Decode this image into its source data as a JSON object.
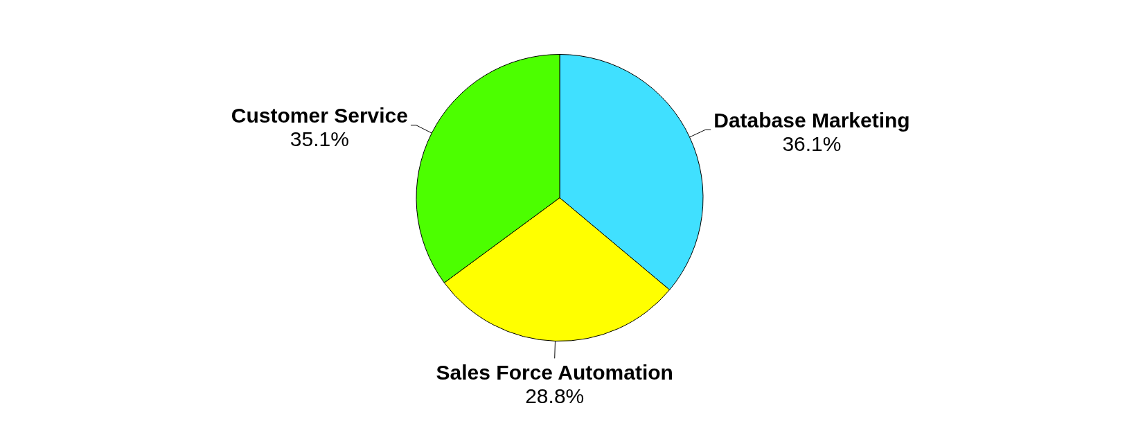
{
  "chart_data": {
    "type": "pie",
    "categories": [
      "Database Marketing",
      "Sales Force Automation",
      "Customer Service"
    ],
    "values": [
      36.1,
      28.8,
      35.1
    ],
    "colors": [
      "#40e0ff",
      "#ffff00",
      "#4cff00"
    ],
    "value_labels": [
      "36.1%",
      "28.8%",
      "35.1%"
    ],
    "legend": false
  }
}
